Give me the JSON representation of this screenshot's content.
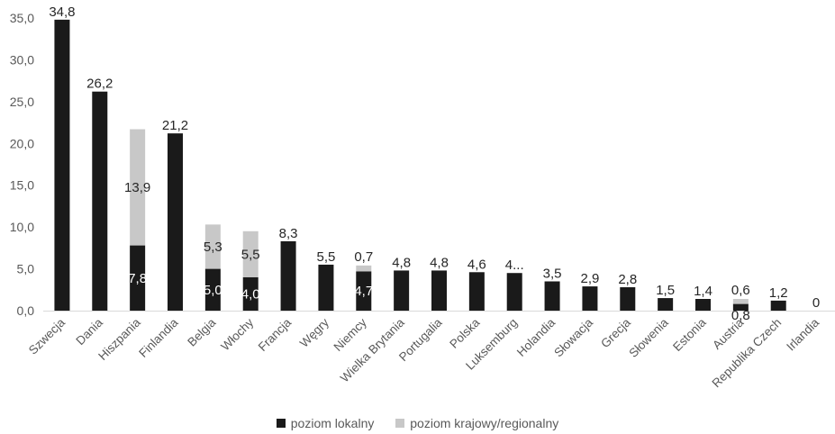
{
  "chart_data": {
    "type": "bar",
    "stacked": true,
    "categories": [
      "Szwecja",
      "Dania",
      "Hiszpania",
      "Finlandia",
      "Belgia",
      "Włochy",
      "Francja",
      "Węgry",
      "Niemcy",
      "Wielka Brytania",
      "Portugalia",
      "Polska",
      "Luksemburg",
      "Holandia",
      "Słowacja",
      "Grecja",
      "Słowenia",
      "Estonia",
      "Austria",
      "Republika Czech",
      "Irlandia"
    ],
    "series": [
      {
        "name": "poziom lokalny",
        "color": "#1a1a1a",
        "values": [
          34.8,
          26.2,
          7.8,
          21.2,
          5.0,
          4.0,
          8.3,
          5.5,
          4.7,
          4.8,
          4.8,
          4.6,
          4.5,
          3.5,
          2.9,
          2.8,
          1.5,
          1.4,
          0.8,
          1.2,
          0
        ],
        "labels": [
          "34,8",
          "26,2",
          "7,8",
          "21,2",
          "5,0",
          "4,0",
          "8,3",
          "5,5",
          "4,7",
          "4,8",
          "4,8",
          "4,6",
          "4...",
          "3,5",
          "2,9",
          "2,8",
          "1,5",
          "1,4",
          "0,8",
          "1,2",
          "0"
        ]
      },
      {
        "name": "poziom krajowy/regionalny",
        "color": "#c8c8c8",
        "values": [
          0,
          0,
          13.9,
          0,
          5.3,
          5.5,
          0,
          0,
          0.7,
          0,
          0,
          0,
          0,
          0,
          0,
          0,
          0,
          0,
          0.6,
          0,
          0
        ],
        "labels": [
          "",
          "",
          "13,9",
          "",
          "5,3",
          "5,5",
          "",
          "",
          "0,7",
          "",
          "",
          "",
          "",
          "",
          "",
          "",
          "",
          "",
          "0,6",
          "",
          ""
        ]
      }
    ],
    "yticks": [
      "0,0",
      "5,0",
      "10,0",
      "15,0",
      "20,0",
      "25,0",
      "30,0",
      "35,0"
    ],
    "ylim": [
      0,
      35
    ],
    "grid": false,
    "legend_position": "bottom",
    "title": "",
    "xlabel": "",
    "ylabel": ""
  }
}
